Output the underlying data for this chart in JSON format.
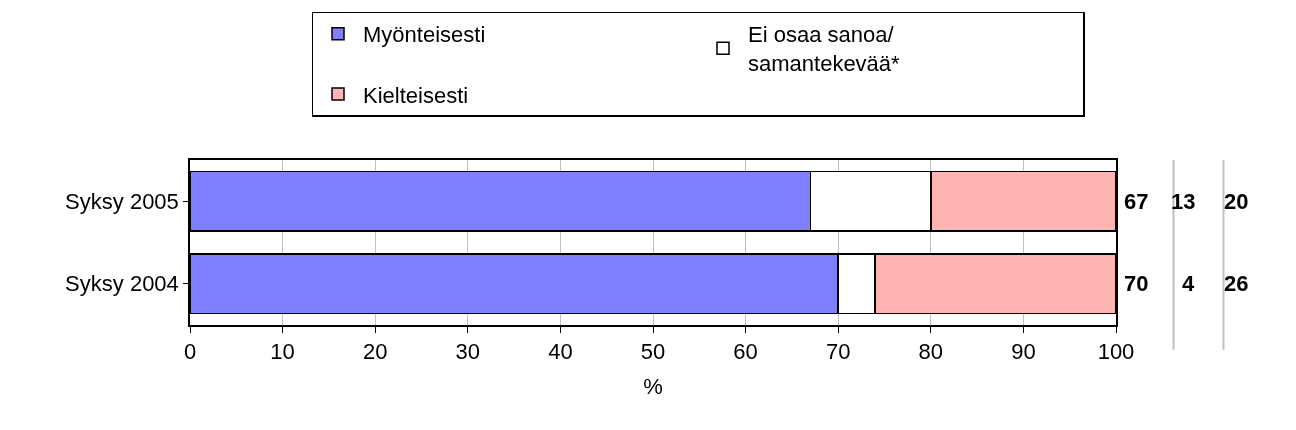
{
  "chart_data": {
    "type": "bar",
    "orientation": "horizontal",
    "stacked": true,
    "categories": [
      "Syksy 2005",
      "Syksy 2004"
    ],
    "series": [
      {
        "name": "Myönteisesti",
        "color": "#8080ff",
        "values": [
          67,
          70
        ]
      },
      {
        "name": "Ei osaa sanoa/samantekevää*",
        "color": "#ffffff",
        "values": [
          13,
          4
        ]
      },
      {
        "name": "Kielteisesti",
        "color": "#ffb3b3",
        "values": [
          20,
          26
        ]
      }
    ],
    "xlim": [
      0,
      100
    ],
    "xticks": [
      0,
      10,
      20,
      30,
      40,
      50,
      60,
      70,
      80,
      90,
      100
    ],
    "xlabel": "%",
    "grid": "x",
    "legend": "top",
    "data_labels": true
  }
}
